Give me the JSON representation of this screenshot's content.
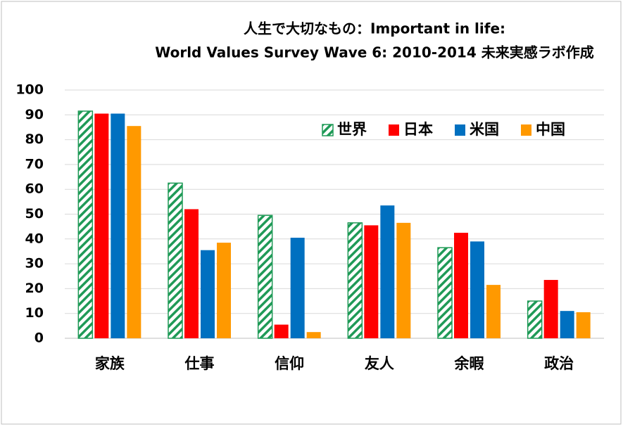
{
  "chart_data": {
    "type": "bar",
    "title": "人生で大切なもの：Important in life:",
    "subtitle": "World Values Survey Wave 6: 2010-2014 未来実感ラボ作成",
    "categories": [
      "家族",
      "仕事",
      "信仰",
      "友人",
      "余暇",
      "政治"
    ],
    "series": [
      {
        "name": "世界",
        "color": "#1f9a57",
        "pattern": "hatch",
        "values": [
          91.5,
          62.5,
          49.5,
          46.5,
          36.5,
          15
        ]
      },
      {
        "name": "日本",
        "color": "#ff0000",
        "values": [
          90.5,
          52,
          5.5,
          45.5,
          42.5,
          23.5
        ]
      },
      {
        "name": "米国",
        "color": "#0070c0",
        "values": [
          90.5,
          35.5,
          40.5,
          53.5,
          39,
          11
        ]
      },
      {
        "name": "中国",
        "color": "#ff9900",
        "values": [
          85.5,
          38.5,
          2.5,
          46.5,
          21.5,
          10.5
        ]
      }
    ],
    "ylim": [
      0,
      100
    ],
    "yticks": [
      0,
      10,
      20,
      30,
      40,
      50,
      60,
      70,
      80,
      90,
      100
    ],
    "grid": true,
    "legend": "upper right"
  }
}
